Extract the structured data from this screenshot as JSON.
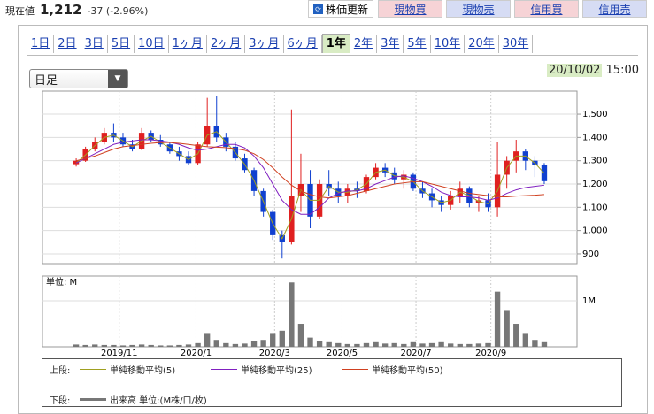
{
  "header": {
    "label": "現在値",
    "price": "1,212",
    "change": "-37 (-2.96%)",
    "refresh": "株価更新",
    "buttons": [
      "現物買",
      "現物売",
      "信用買",
      "信用売"
    ]
  },
  "tabs": {
    "items": [
      "1日",
      "2日",
      "3日",
      "5日",
      "10日",
      "1ヶ月",
      "2ヶ月",
      "3ヶ月",
      "6ヶ月",
      "1年",
      "2年",
      "3年",
      "5年",
      "10年",
      "20年",
      "30年"
    ],
    "selected": 9
  },
  "controls": {
    "period": "日足",
    "date": "20/10/02",
    "time": "15:00"
  },
  "chart_data": {
    "type": "candlestick",
    "up_color": "#e02020",
    "down_color": "#1040d0",
    "grid": true,
    "categories": [
      null,
      null,
      null,
      null,
      null,
      null,
      null,
      null,
      null,
      null,
      null,
      null,
      null,
      null,
      null,
      null,
      null,
      null,
      null,
      null,
      null,
      null,
      null,
      null,
      null,
      null,
      null,
      null,
      null,
      null,
      null,
      null,
      null,
      null,
      null,
      null,
      null,
      null,
      null,
      null,
      null,
      null,
      null,
      null,
      null,
      null,
      null,
      null,
      null,
      null,
      null
    ],
    "open": [
      1285,
      1300,
      1350,
      1380,
      1420,
      1400,
      1370,
      1350,
      1420,
      1390,
      1370,
      1340,
      1320,
      1290,
      1370,
      1450,
      1400,
      1360,
      1310,
      1260,
      1170,
      1080,
      980,
      950,
      1150,
      1200,
      1060,
      1200,
      1180,
      1150,
      1180,
      1170,
      1230,
      1270,
      1250,
      1220,
      1240,
      1180,
      1160,
      1130,
      1110,
      1150,
      1180,
      1120,
      1130,
      1100,
      1240,
      1300,
      1340,
      1300,
      1280
    ],
    "high": [
      1310,
      1360,
      1400,
      1440,
      1460,
      1420,
      1390,
      1440,
      1430,
      1410,
      1380,
      1360,
      1340,
      1380,
      1570,
      1580,
      1420,
      1380,
      1330,
      1270,
      1180,
      1090,
      1000,
      1520,
      1330,
      1260,
      1220,
      1260,
      1210,
      1200,
      1210,
      1240,
      1290,
      1290,
      1270,
      1260,
      1250,
      1210,
      1180,
      1150,
      1170,
      1210,
      1190,
      1150,
      1160,
      1380,
      1320,
      1390,
      1350,
      1320,
      1290
    ],
    "low": [
      1275,
      1295,
      1340,
      1370,
      1380,
      1360,
      1340,
      1345,
      1380,
      1360,
      1330,
      1300,
      1280,
      1280,
      1360,
      1380,
      1340,
      1300,
      1250,
      1150,
      1060,
      960,
      880,
      940,
      1080,
      1010,
      1050,
      1150,
      1120,
      1120,
      1140,
      1160,
      1220,
      1230,
      1200,
      1180,
      1170,
      1140,
      1100,
      1080,
      1090,
      1120,
      1100,
      1080,
      1080,
      1060,
      1180,
      1250,
      1260,
      1230,
      1200
    ],
    "close": [
      1300,
      1350,
      1380,
      1420,
      1400,
      1370,
      1350,
      1420,
      1390,
      1370,
      1340,
      1320,
      1290,
      1370,
      1450,
      1400,
      1360,
      1310,
      1260,
      1170,
      1080,
      980,
      950,
      1150,
      1200,
      1060,
      1200,
      1180,
      1150,
      1180,
      1170,
      1230,
      1270,
      1250,
      1220,
      1240,
      1180,
      1160,
      1130,
      1110,
      1150,
      1180,
      1120,
      1130,
      1100,
      1240,
      1300,
      1340,
      1300,
      1280,
      1212
    ],
    "series": [
      {
        "name": "単純移動平均(5)",
        "color": "#a0a020",
        "values": [
          1290,
          1325,
          1365,
          1400,
          1410,
          1385,
          1360,
          1385,
          1405,
          1380,
          1355,
          1330,
          1305,
          1330,
          1410,
          1425,
          1380,
          1335,
          1285,
          1215,
          1125,
          1030,
          965,
          1050,
          1175,
          1130,
          1130,
          1190,
          1165,
          1165,
          1175,
          1200,
          1250,
          1260,
          1235,
          1230,
          1210,
          1170,
          1145,
          1120,
          1130,
          1165,
          1150,
          1125,
          1115,
          1170,
          1270,
          1320,
          1320,
          1290,
          1246
        ]
      },
      {
        "name": "単純移動平均(25)",
        "color": "#8020c0",
        "values": [
          1290,
          1310,
          1330,
          1350,
          1370,
          1380,
          1385,
          1390,
          1390,
          1385,
          1380,
          1370,
          1355,
          1345,
          1350,
          1360,
          1370,
          1370,
          1355,
          1320,
          1270,
          1200,
          1130,
          1090,
          1070,
          1070,
          1100,
          1140,
          1160,
          1170,
          1170,
          1180,
          1200,
          1215,
          1230,
          1235,
          1225,
          1210,
          1190,
          1165,
          1150,
          1145,
          1145,
          1140,
          1130,
          1140,
          1160,
          1175,
          1185,
          1190,
          1195
        ]
      },
      {
        "name": "単純移動平均(50)",
        "color": "#d04020",
        "values": [
          1300,
          1310,
          1320,
          1335,
          1350,
          1360,
          1365,
          1370,
          1375,
          1378,
          1378,
          1375,
          1370,
          1365,
          1360,
          1358,
          1356,
          1352,
          1345,
          1330,
          1305,
          1270,
          1230,
          1195,
          1170,
          1155,
          1145,
          1140,
          1145,
          1150,
          1160,
          1170,
          1180,
          1190,
          1200,
          1205,
          1210,
          1210,
          1200,
          1190,
          1180,
          1170,
          1160,
          1155,
          1150,
          1145,
          1145,
          1148,
          1150,
          1152,
          1155
        ]
      }
    ],
    "xlim": [
      -3.6,
      53.5
    ],
    "xticks": [
      {
        "value": 4.6,
        "label": "2019/11"
      },
      {
        "value": 12.8,
        "label": "2020/1"
      },
      {
        "value": 21.2,
        "label": "2020/3"
      },
      {
        "value": 28.4,
        "label": "2020/5"
      },
      {
        "value": 36.3,
        "label": "2020/7"
      },
      {
        "value": 44.3,
        "label": "2020/9"
      }
    ],
    "ylim": [
      858,
      1599
    ],
    "yticks": [
      {
        "value": 1500,
        "label": "1,500"
      },
      {
        "value": 1400,
        "label": "1,400"
      },
      {
        "value": 1300,
        "label": "1,300"
      },
      {
        "value": 1200,
        "label": "1,200"
      },
      {
        "value": 1100,
        "label": "1,100"
      },
      {
        "value": 1000,
        "label": "1,000"
      },
      900
    ],
    "volume": {
      "unit_label": "単位: M",
      "color": "#777",
      "values": [
        0.05,
        0.04,
        0.05,
        0.04,
        0.04,
        0.03,
        0.04,
        0.05,
        0.04,
        0.03,
        0.03,
        0.04,
        0.05,
        0.08,
        0.3,
        0.15,
        0.08,
        0.06,
        0.07,
        0.12,
        0.15,
        0.3,
        0.35,
        1.4,
        0.5,
        0.2,
        0.12,
        0.1,
        0.08,
        0.06,
        0.06,
        0.08,
        0.1,
        0.07,
        0.08,
        0.06,
        0.1,
        0.07,
        0.08,
        0.1,
        0.07,
        0.06,
        0.06,
        0.07,
        0.08,
        1.2,
        0.8,
        0.5,
        0.3,
        0.15,
        0.1
      ],
      "ylim": [
        0,
        1.54
      ],
      "yticks": [
        {
          "value": 1,
          "label": "1M"
        }
      ]
    },
    "legend": {
      "upper": "上段:",
      "lower": "下段:",
      "volume": "出来高 単位:(M株/口/枚)"
    }
  }
}
